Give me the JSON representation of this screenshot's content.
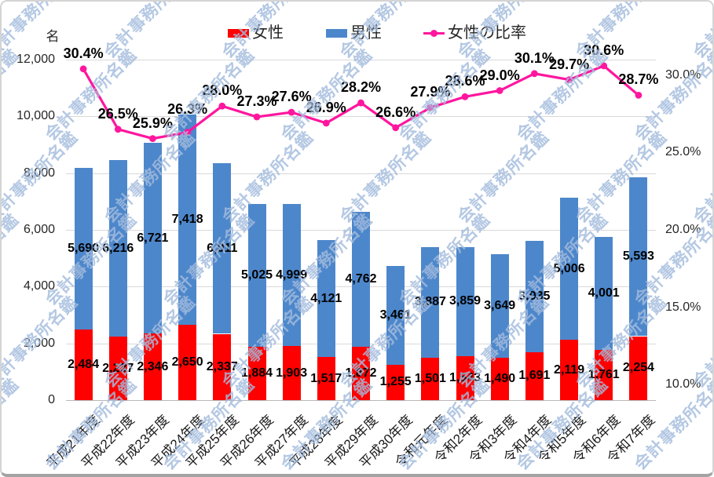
{
  "watermark": {
    "text": "会計事務所名鑑"
  },
  "legend": {
    "items": [
      {
        "label": "女性",
        "color": "#ff0000",
        "marker": "rect"
      },
      {
        "label": "男性",
        "color": "#4d87cb",
        "marker": "rect"
      },
      {
        "label": "女性の比率",
        "color": "#ff169e",
        "marker": "line"
      }
    ]
  },
  "chart_data": {
    "type": "bar",
    "subtype": "stacked-column-with-line-on-secondary-axis",
    "title": "",
    "categories": [
      "平成21年度",
      "平成22年度",
      "平成23年度",
      "平成24年度",
      "平成25年度",
      "平成26年度",
      "平成27年度",
      "平成28年度",
      "平成29年度",
      "平成30年度",
      "令和元年度",
      "令和2年度",
      "令和3年度",
      "令和4年度",
      "令和5年度",
      "令和6年度",
      "令和7年度"
    ],
    "series": [
      {
        "name": "女性",
        "type": "bar",
        "stacked": true,
        "color": "#ff0000",
        "values": [
          2484,
          2237,
          2346,
          2650,
          2337,
          1884,
          1903,
          1517,
          1872,
          1255,
          1501,
          1543,
          1490,
          1691,
          2119,
          1761,
          2254
        ],
        "labels": [
          "2,484",
          "2,237",
          "2,346",
          "2,650",
          "2,337",
          "1,884",
          "1,903",
          "1,517",
          "1,872",
          "1,255",
          "1,501",
          "1,543",
          "1,490",
          "1,691",
          "2,119",
          "1,761",
          "2,254"
        ]
      },
      {
        "name": "男性",
        "type": "bar",
        "stacked": true,
        "color": "#4d87cb",
        "values": [
          5690,
          6216,
          6721,
          7418,
          6011,
          5025,
          4999,
          4121,
          4762,
          3461,
          3887,
          3859,
          3649,
          3935,
          5006,
          4001,
          5593
        ],
        "labels": [
          "5,690",
          "6,216",
          "6,721",
          "7,418",
          "6,011",
          "5,025",
          "4,999",
          "4,121",
          "4,762",
          "3,461",
          "3,887",
          "3,859",
          "3,649",
          "3,935",
          "5,006",
          "4,001",
          "5,593"
        ]
      },
      {
        "name": "女性の比率",
        "type": "line",
        "axis": "secondary",
        "color": "#ff169e",
        "values": [
          30.4,
          26.5,
          25.9,
          26.3,
          28.0,
          27.3,
          27.6,
          26.9,
          28.2,
          26.6,
          27.9,
          28.6,
          29.0,
          30.1,
          29.7,
          30.6,
          28.7
        ],
        "labels": [
          "30.4%",
          "26.5%",
          "25.9%",
          "26.3%",
          "28.0%",
          "27.3%",
          "27.6%",
          "26.9%",
          "28.2%",
          "26.6%",
          "27.9%",
          "28.6%",
          "29.0%",
          "30.1%",
          "29.7%",
          "30.6%",
          "28.7%"
        ]
      }
    ],
    "primary_axis": {
      "unit": "名",
      "min": 0,
      "max": 12000,
      "tick_step": 2000,
      "tick_labels": [
        "0",
        "2,000",
        "4,000",
        "6,000",
        "8,000",
        "10,000",
        "12,000"
      ]
    },
    "secondary_axis": {
      "min": 9,
      "max": 31,
      "tick_values": [
        10,
        15,
        20,
        25,
        30
      ],
      "tick_labels": [
        "10.0%",
        "15.0%",
        "20.0%",
        "25.0%",
        "30.0%"
      ]
    },
    "grid": true,
    "legend_position": "top"
  }
}
